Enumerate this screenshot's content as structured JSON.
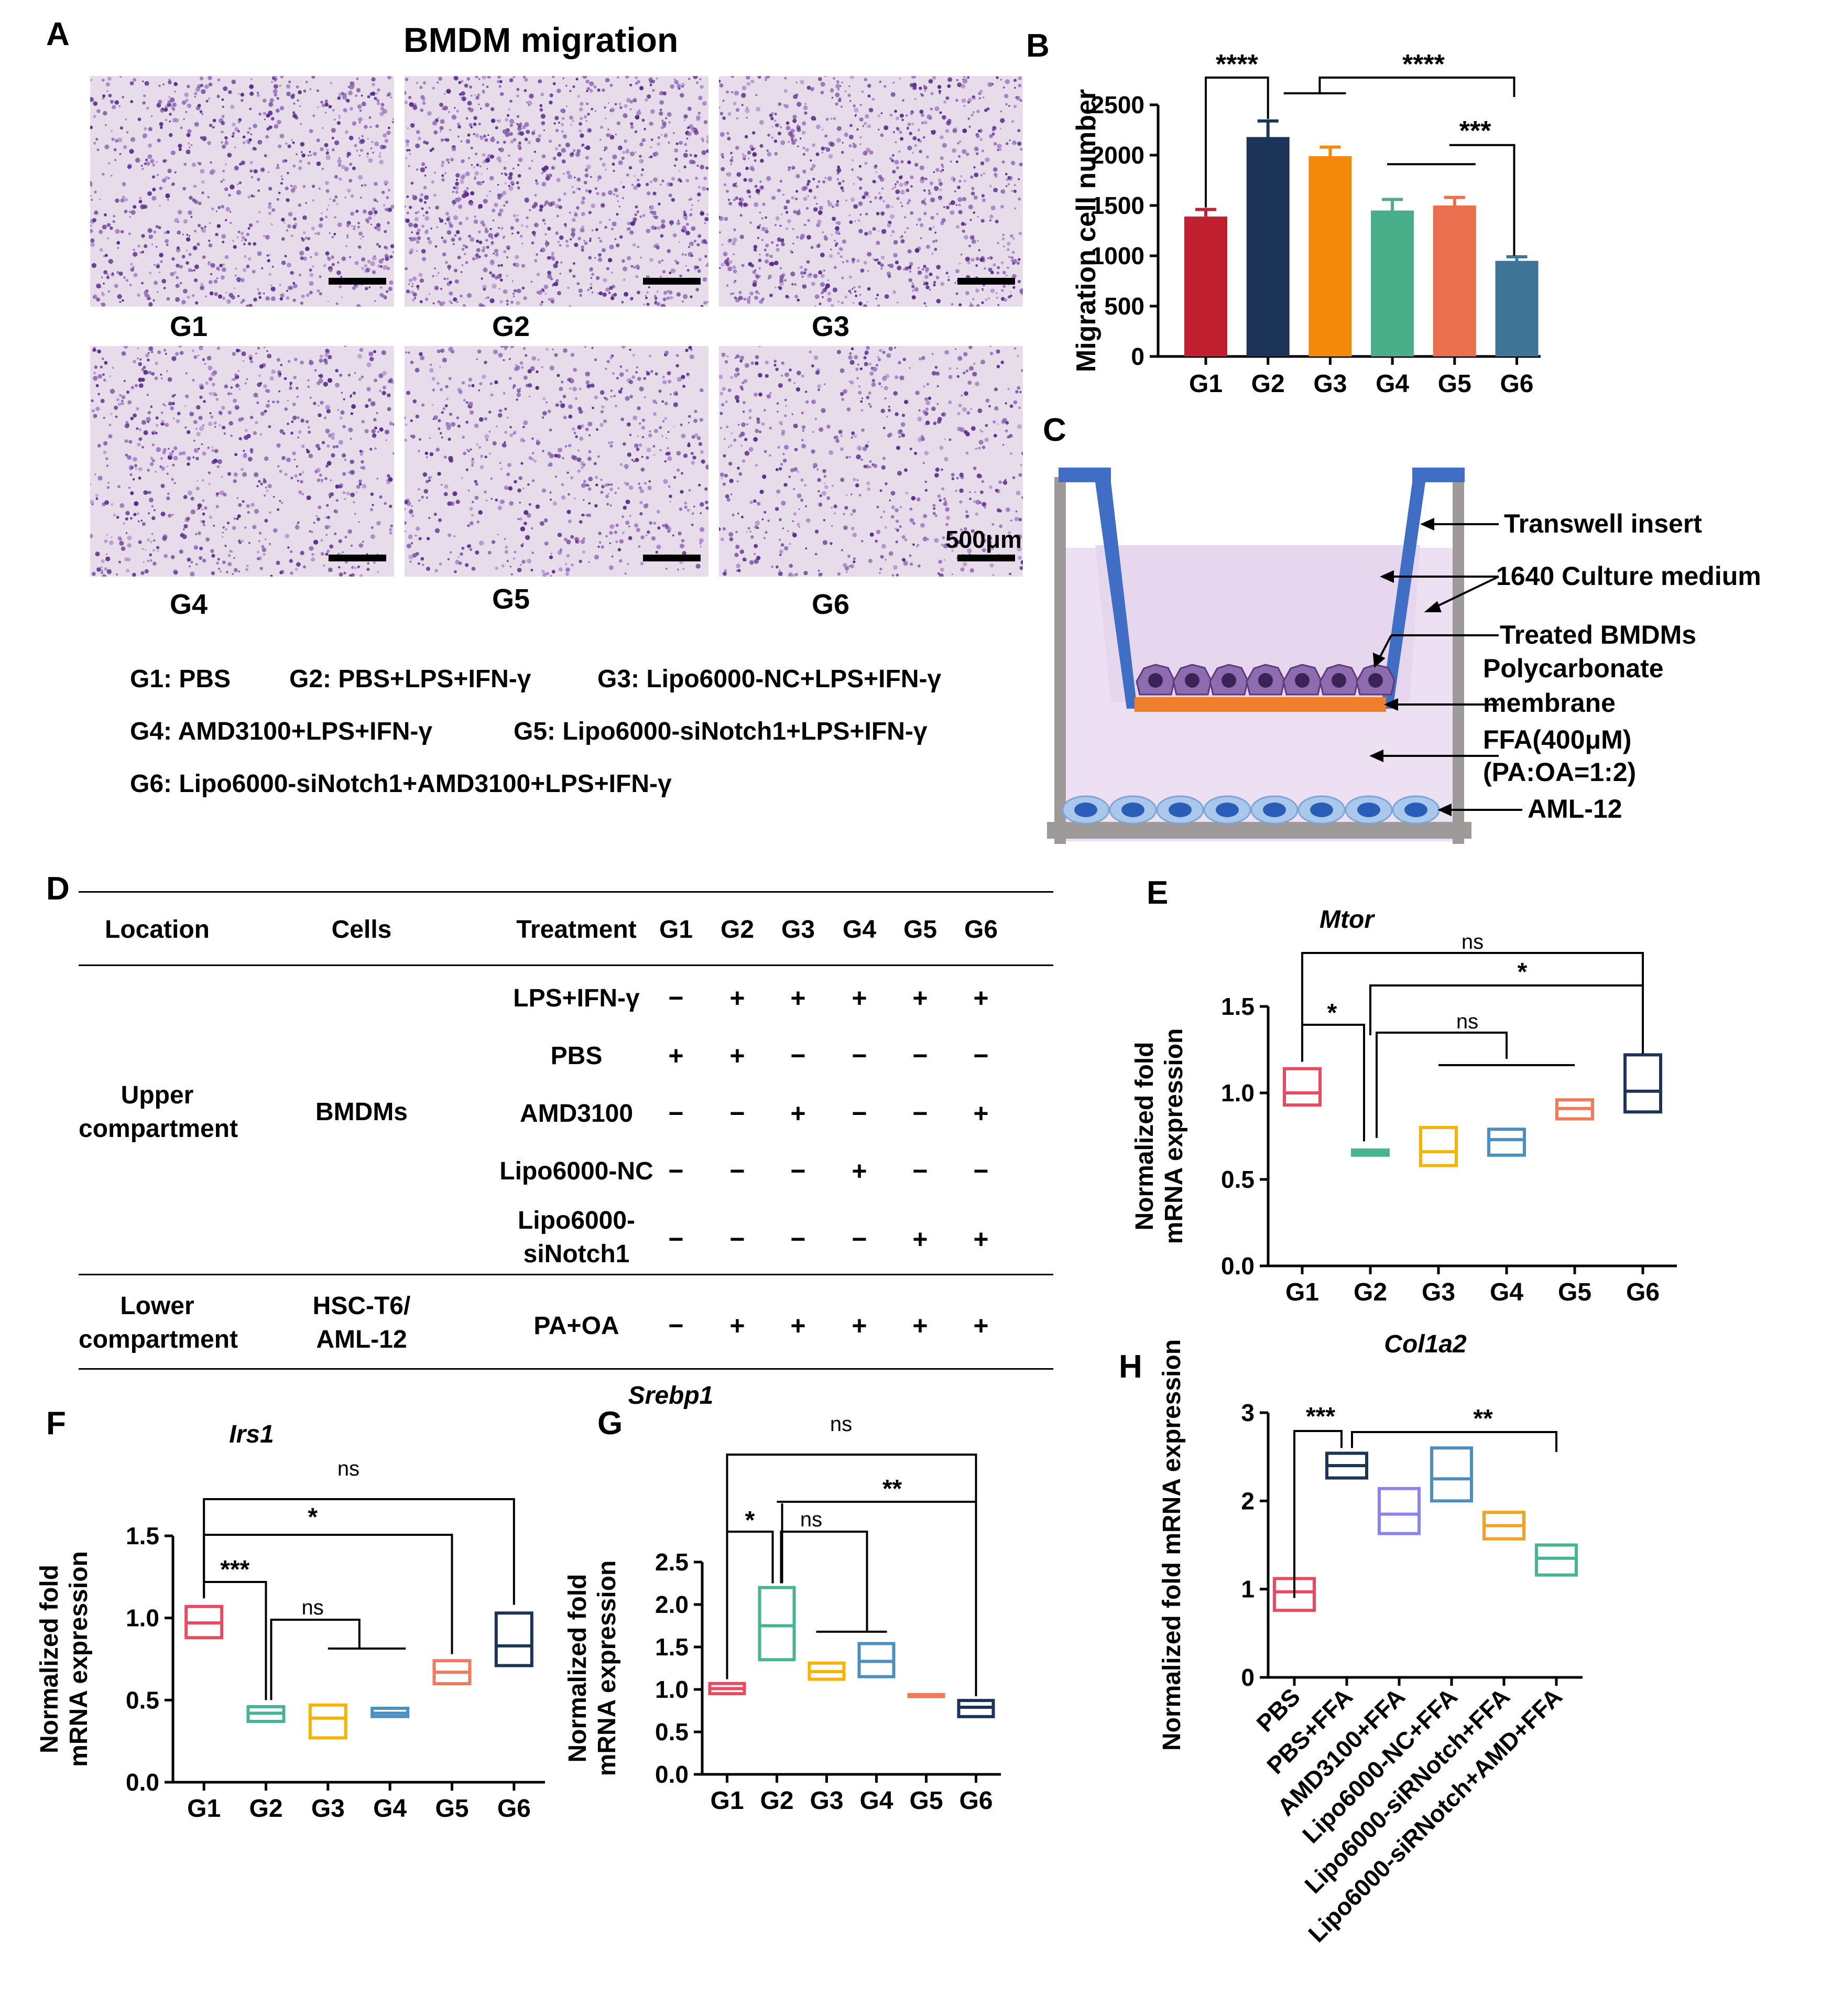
{
  "panels": {
    "a": "A",
    "b": "B",
    "c": "C",
    "d": "D",
    "e": "E",
    "f": "F",
    "g": "G",
    "h": "H"
  },
  "panel_a": {
    "title": "BMDM migration",
    "group_labels": [
      "G1",
      "G2",
      "G3",
      "G4",
      "G5",
      "G6"
    ],
    "scale_bar_label": "500μm",
    "legend_lines": [
      [
        "G1: PBS",
        "G2: PBS+LPS+IFN-γ",
        "G3: Lipo6000-NC+LPS+IFN-γ"
      ],
      [
        "G4: AMD3100+LPS+IFN-γ",
        "G5: Lipo6000-siNotch1+LPS+IFN-γ"
      ],
      [
        "G6: Lipo6000-siNotch1+AMD3100+LPS+IFN-γ"
      ]
    ]
  },
  "panel_c": {
    "labels": {
      "insert": "Transwell insert",
      "medium": "1640 Culture medium",
      "bmdm": "Treated BMDMs",
      "membrane1": "Polycarbonate",
      "membrane2": "membrane",
      "ffa1": "FFA(400μM)",
      "ffa2": "(PA:OA=1:2)",
      "aml": "AML-12"
    }
  },
  "panel_d": {
    "headers": [
      "Location",
      "Cells",
      "Treatment",
      "G1",
      "G2",
      "G3",
      "G4",
      "G5",
      "G6"
    ],
    "upper_location": [
      "Upper",
      "compartment"
    ],
    "upper_cells": "BMDMs",
    "lower_location": [
      "Lower",
      "compartment"
    ],
    "lower_cells": [
      "HSC-T6/",
      "AML-12"
    ],
    "rows": [
      {
        "treatment": [
          "LPS+IFN-γ"
        ],
        "marks": [
          "−",
          "+",
          "+",
          "+",
          "+",
          "+"
        ]
      },
      {
        "treatment": [
          "PBS"
        ],
        "marks": [
          "+",
          "+",
          "−",
          "−",
          "−",
          "−"
        ]
      },
      {
        "treatment": [
          "AMD3100"
        ],
        "marks": [
          "−",
          "−",
          "+",
          "−",
          "−",
          "+"
        ]
      },
      {
        "treatment": [
          "Lipo6000-NC"
        ],
        "marks": [
          "−",
          "−",
          "−",
          "+",
          "−",
          "−"
        ]
      },
      {
        "treatment": [
          "Lipo6000-",
          "siNotch1"
        ],
        "marks": [
          "−",
          "−",
          "−",
          "−",
          "+",
          "+"
        ]
      },
      {
        "treatment": [
          "PA+OA"
        ],
        "marks": [
          "−",
          "+",
          "+",
          "+",
          "+",
          "+"
        ]
      }
    ]
  },
  "chart_data": [
    {
      "id": "B",
      "type": "bar",
      "categories": [
        "G1",
        "G2",
        "G3",
        "G4",
        "G5",
        "G6"
      ],
      "values": [
        1390,
        2180,
        1990,
        1450,
        1500,
        950
      ],
      "errors": [
        70,
        160,
        90,
        110,
        80,
        40
      ],
      "colors": [
        "#c0202f",
        "#1c3457",
        "#f48a0c",
        "#4aae8a",
        "#e8704f",
        "#3e7597"
      ],
      "ylabel": "Migration cell number",
      "ylim": [
        0,
        2500
      ],
      "yticks": [
        0,
        500,
        1000,
        1500,
        2000,
        2500
      ],
      "significance": [
        "****",
        "****",
        "***"
      ]
    },
    {
      "id": "E",
      "type": "box",
      "title": "Mtor",
      "categories": [
        "G1",
        "G2",
        "G3",
        "G4",
        "G5",
        "G6"
      ],
      "boxes": [
        [
          0.93,
          1.0,
          1.14
        ],
        [
          0.64,
          0.655,
          0.67
        ],
        [
          0.58,
          0.66,
          0.8
        ],
        [
          0.64,
          0.73,
          0.79
        ],
        [
          0.85,
          0.91,
          0.96
        ],
        [
          0.89,
          1.01,
          1.22
        ]
      ],
      "colors": [
        "#e84a5f",
        "#47b591",
        "#f4b400",
        "#4a8fbf",
        "#ef7b5a",
        "#1c3457"
      ],
      "ylabel": [
        "Normalized fold",
        "mRNA expression"
      ],
      "ylim": [
        0,
        1.5
      ],
      "yticks": [
        "0.0",
        "0.5",
        "1.0",
        "1.5"
      ],
      "significance": [
        "ns",
        "*",
        "*",
        "ns"
      ]
    },
    {
      "id": "F",
      "type": "box",
      "title": "Irs1",
      "categories": [
        "G1",
        "G2",
        "G3",
        "G4",
        "G5",
        "G6"
      ],
      "boxes": [
        [
          0.88,
          0.97,
          1.07
        ],
        [
          0.37,
          0.42,
          0.46
        ],
        [
          0.27,
          0.39,
          0.47
        ],
        [
          0.4,
          0.42,
          0.45
        ],
        [
          0.6,
          0.67,
          0.74
        ],
        [
          0.71,
          0.83,
          1.03
        ]
      ],
      "colors": [
        "#e84a5f",
        "#47b591",
        "#f4b400",
        "#4a8fbf",
        "#ef7b5a",
        "#1c3457"
      ],
      "ylabel": [
        "Normalized fold",
        "mRNA expression"
      ],
      "ylim": [
        0,
        1.5
      ],
      "yticks": [
        "0.0",
        "0.5",
        "1.0",
        "1.5"
      ],
      "significance": [
        "ns",
        "*",
        "***",
        "ns"
      ]
    },
    {
      "id": "G",
      "type": "box",
      "title": "Srebp1",
      "categories": [
        "G1",
        "G2",
        "G3",
        "G4",
        "G5",
        "G6"
      ],
      "boxes": [
        [
          0.95,
          1.01,
          1.07
        ],
        [
          1.35,
          1.75,
          2.2
        ],
        [
          1.12,
          1.21,
          1.31
        ],
        [
          1.15,
          1.33,
          1.54
        ],
        [
          0.92,
          0.93,
          0.94
        ],
        [
          0.68,
          0.79,
          0.87
        ]
      ],
      "colors": [
        "#e84a5f",
        "#47b591",
        "#f4b400",
        "#4a8fbf",
        "#ef7b5a",
        "#1c3457"
      ],
      "ylabel": [
        "Normalized fold",
        "mRNA expression"
      ],
      "ylim": [
        0,
        2.5
      ],
      "yticks": [
        "0.0",
        "0.5",
        "1.0",
        "1.5",
        "2.0",
        "2.5"
      ],
      "significance": [
        "ns",
        "**",
        "*",
        "ns"
      ]
    },
    {
      "id": "H",
      "type": "box",
      "title": "Col1a2",
      "categories": [
        "PBS",
        "PBS+FFA",
        "AMD3100+FFA",
        "Lipo6000-NC+FFA",
        "Lipo6000-siRNotch+FFA",
        "Lipo6000-siRNotch+AMD+FFA"
      ],
      "boxes": [
        [
          0.76,
          0.97,
          1.12
        ],
        [
          2.26,
          2.4,
          2.54
        ],
        [
          1.63,
          1.85,
          2.14
        ],
        [
          2.0,
          2.25,
          2.6
        ],
        [
          1.57,
          1.72,
          1.87
        ],
        [
          1.16,
          1.35,
          1.5
        ]
      ],
      "colors": [
        "#e84a5f",
        "#1c3457",
        "#8a84ee",
        "#4a8fbf",
        "#f4a020",
        "#47b591"
      ],
      "ylabel": [
        "Normalized fold mRNA expression"
      ],
      "ylim": [
        0,
        3
      ],
      "yticks": [
        "0",
        "1",
        "2",
        "3"
      ],
      "significance": [
        "***",
        "**"
      ]
    }
  ]
}
